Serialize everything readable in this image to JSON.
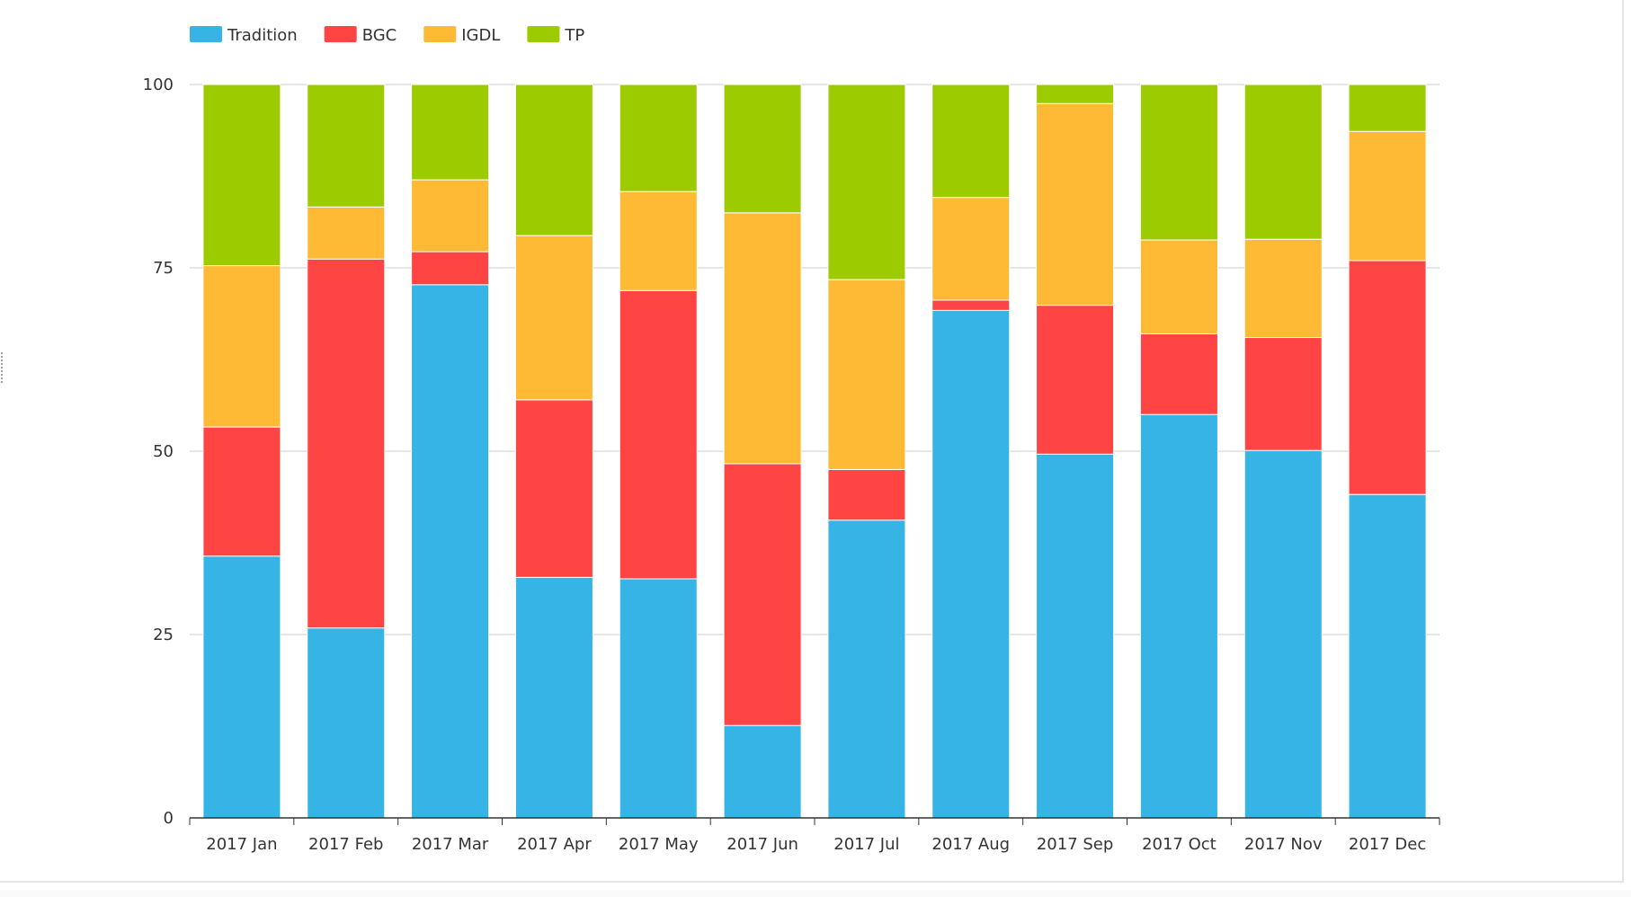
{
  "chart_data": {
    "type": "bar",
    "stacked": true,
    "title": "",
    "xlabel": "",
    "ylabel": "",
    "ylim": [
      0,
      100
    ],
    "yticks": [
      0,
      25,
      50,
      75,
      100
    ],
    "grid": true,
    "legend_position": "top-left",
    "categories": [
      "2017 Jan",
      "2017 Feb",
      "2017 Mar",
      "2017 Apr",
      "2017 May",
      "2017 Jun",
      "2017 Jul",
      "2017 Aug",
      "2017 Sep",
      "2017 Oct",
      "2017 Nov",
      "2017 Dec"
    ],
    "series": [
      {
        "name": "Tradition",
        "color": "#35b4e5",
        "values": [
          35.7,
          25.9,
          72.7,
          32.8,
          32.6,
          12.6,
          40.6,
          69.2,
          49.6,
          55.0,
          50.1,
          44.1
        ]
      },
      {
        "name": "BGC",
        "color": "#ff4444",
        "values": [
          17.6,
          50.3,
          4.5,
          24.2,
          39.3,
          35.7,
          6.9,
          1.4,
          20.3,
          11.0,
          15.4,
          31.9
        ]
      },
      {
        "name": "IGDL",
        "color": "#feb935",
        "values": [
          22.0,
          7.1,
          9.8,
          22.4,
          13.5,
          34.2,
          25.9,
          14.0,
          27.5,
          12.8,
          13.4,
          17.6
        ]
      },
      {
        "name": "TP",
        "color": "#9ccc00",
        "values": [
          24.7,
          16.7,
          13.0,
          20.6,
          14.6,
          17.5,
          26.6,
          15.4,
          2.6,
          21.2,
          21.1,
          6.4
        ]
      }
    ]
  },
  "colors": {
    "grid": "#cccccc",
    "axis": "#333333",
    "text": "#333333"
  }
}
